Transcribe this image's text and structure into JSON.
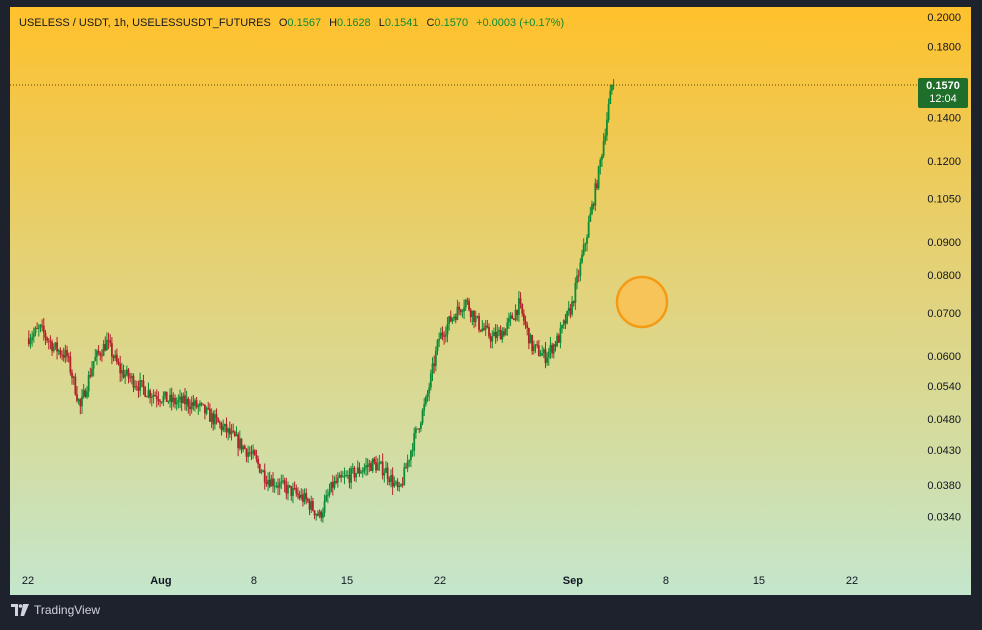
{
  "legend": {
    "symbol": "USELESS / USDT, 1h, USELESSUSDT_FUTURES",
    "o_label": "O",
    "o_value": "0.1567",
    "h_label": "H",
    "h_value": "0.1628",
    "l_label": "L",
    "l_value": "0.1541",
    "c_label": "C",
    "c_value": "0.1570",
    "change": "+0.0003 (+0.17%)"
  },
  "price_tag": {
    "price": "0.1570",
    "countdown": "12:04"
  },
  "footer": {
    "brand": "TradingView"
  },
  "colors": {
    "up_candle": "#0b8c35",
    "down_candle": "#b2202a",
    "price_tag": "#1f6e2a",
    "marker_fill": "#f7c45a",
    "marker_stroke": "#f59a14"
  },
  "chart_data": {
    "type": "candlestick",
    "title": "USELESS / USDT, 1h, USELESSUSDT_FUTURES",
    "y_scale": "log",
    "y_ticks": [
      "0.2000",
      "0.1800",
      "0.1570",
      "0.1400",
      "0.1200",
      "0.1050",
      "0.0900",
      "0.0800",
      "0.0700",
      "0.0600",
      "0.0540",
      "0.0480",
      "0.0430",
      "0.0380",
      "0.0340"
    ],
    "x_ticks": [
      "22",
      "Aug",
      "8",
      "15",
      "22",
      "Sep",
      "8",
      "15",
      "22"
    ],
    "x_tick_dates": [
      "2025-07-22",
      "2025-08-01",
      "2025-08-08",
      "2025-08-15",
      "2025-08-22",
      "2025-09-01",
      "2025-09-08",
      "2025-09-15",
      "2025-09-22"
    ],
    "x_range": [
      "2025-07-22",
      "2025-09-29"
    ],
    "ylim": [
      0.0305,
      0.202
    ],
    "grid": false,
    "price_path": {
      "dates": [
        "2025-07-22",
        "2025-07-23",
        "2025-07-24",
        "2025-07-25",
        "2025-07-26",
        "2025-07-27",
        "2025-07-28",
        "2025-07-29",
        "2025-07-30",
        "2025-07-31",
        "2025-08-01",
        "2025-08-02",
        "2025-08-03",
        "2025-08-04",
        "2025-08-05",
        "2025-08-06",
        "2025-08-07",
        "2025-08-08",
        "2025-08-09",
        "2025-08-10",
        "2025-08-11",
        "2025-08-12",
        "2025-08-13",
        "2025-08-14",
        "2025-08-15",
        "2025-08-16",
        "2025-08-17",
        "2025-08-18",
        "2025-08-19",
        "2025-08-20",
        "2025-08-21",
        "2025-08-22",
        "2025-08-23",
        "2025-08-24",
        "2025-08-25",
        "2025-08-26",
        "2025-08-27",
        "2025-08-28",
        "2025-08-29",
        "2025-08-30",
        "2025-08-31",
        "2025-09-01",
        "2025-09-02",
        "2025-09-03",
        "2025-09-04"
      ],
      "values": [
        0.064,
        0.066,
        0.062,
        0.06,
        0.05,
        0.059,
        0.063,
        0.057,
        0.055,
        0.053,
        0.052,
        0.051,
        0.051,
        0.05,
        0.048,
        0.046,
        0.044,
        0.042,
        0.039,
        0.038,
        0.037,
        0.036,
        0.034,
        0.038,
        0.039,
        0.04,
        0.041,
        0.04,
        0.037,
        0.044,
        0.051,
        0.064,
        0.069,
        0.073,
        0.067,
        0.064,
        0.066,
        0.072,
        0.062,
        0.06,
        0.064,
        0.072,
        0.09,
        0.115,
        0.157
      ]
    },
    "last": {
      "open": 0.1567,
      "high": 0.1628,
      "low": 0.1541,
      "close": 0.157
    }
  }
}
